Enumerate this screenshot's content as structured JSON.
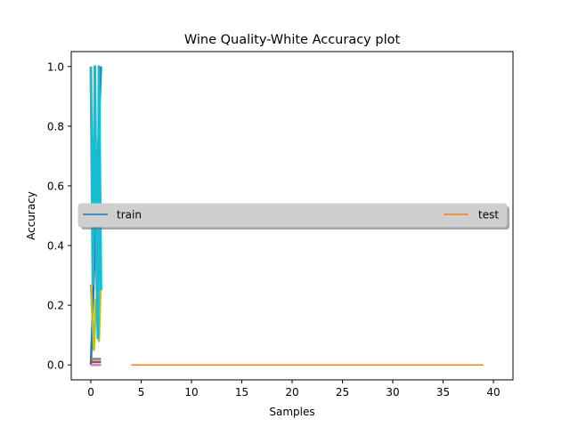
{
  "chart_data": {
    "type": "line",
    "title": "Wine Quality-White Accuracy plot",
    "xlabel": "Samples",
    "ylabel": "Accuracy",
    "xlim": [
      -1.95,
      41.95
    ],
    "ylim": [
      -0.05,
      1.05
    ],
    "xticks": [
      0,
      5,
      10,
      15,
      20,
      25,
      30,
      35,
      40
    ],
    "xtick_labels": [
      "0",
      "5",
      "10",
      "15",
      "20",
      "25",
      "30",
      "35",
      "40"
    ],
    "yticks": [
      0.0,
      0.2,
      0.4,
      0.6,
      0.8,
      1.0
    ],
    "ytick_labels": [
      "0.0",
      "0.2",
      "0.4",
      "0.6",
      "0.8",
      "1.0"
    ],
    "grid": false,
    "legend": {
      "placement": "center, spanning full width",
      "entries": [
        {
          "label": "train",
          "color": "#1f77b4"
        },
        {
          "label": "test",
          "color": "#ff7f0e"
        }
      ]
    },
    "series": [
      {
        "name": "train",
        "color": "#1f77b4",
        "x": [
          0,
          1
        ],
        "y": [
          0.0,
          1.0
        ]
      },
      {
        "name": "test",
        "color": "#ff7f0e",
        "x": [
          4,
          39
        ],
        "y": [
          0.0,
          0.0
        ]
      },
      {
        "color": "#2ca02c",
        "x": [
          0,
          1
        ],
        "y": [
          0.01,
          0.01
        ]
      },
      {
        "color": "#d62728",
        "x": [
          0,
          1
        ],
        "y": [
          0.0,
          0.0
        ]
      },
      {
        "color": "#9467bd",
        "x": [
          0,
          1
        ],
        "y": [
          0.0,
          0.0
        ]
      },
      {
        "color": "#8c564b",
        "x": [
          0,
          1
        ],
        "y": [
          0.01,
          0.01
        ]
      },
      {
        "color": "#e377c2",
        "x": [
          0,
          1
        ],
        "y": [
          0.0,
          0.0
        ]
      },
      {
        "color": "#7f7f7f",
        "x": [
          0,
          1
        ],
        "y": [
          0.02,
          0.02
        ]
      },
      {
        "color": "#bcbd22",
        "x": [
          0,
          0.3,
          0.5,
          0.8,
          1
        ],
        "y": [
          0.27,
          0.05,
          0.22,
          0.08,
          0.3
        ]
      },
      {
        "color": "#17becf",
        "x": [
          0,
          0.2,
          0.4,
          0.6,
          0.7,
          0.8,
          1
        ],
        "y": [
          1.0,
          0.27,
          1.0,
          0.25,
          0.09,
          1.0,
          0.25
        ]
      }
    ]
  }
}
